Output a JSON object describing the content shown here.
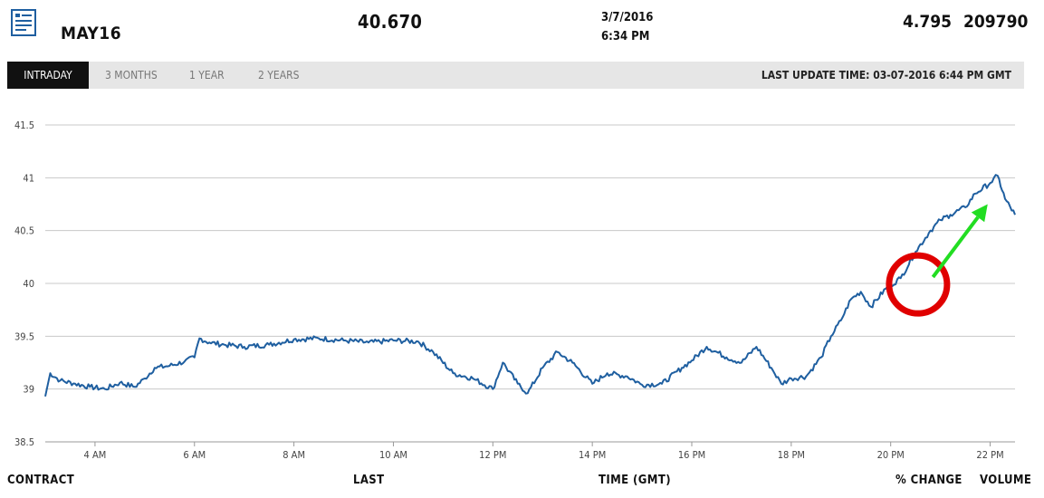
{
  "header": {
    "icon": "report-document-icon",
    "contract": "MAY16",
    "last": "40.670",
    "date": "3/7/2016",
    "time": "6:34 PM",
    "percent_change": "4.795",
    "volume": "209790"
  },
  "tabs": [
    {
      "label": "INTRADAY",
      "active": true
    },
    {
      "label": "3 MONTHS",
      "active": false
    },
    {
      "label": "1 YEAR",
      "active": false
    },
    {
      "label": "2 YEARS",
      "active": false
    }
  ],
  "last_update": "LAST UPDATE TIME: 03-07-2016 6:44 PM GMT",
  "footer": {
    "contract": "CONTRACT",
    "last": "LAST",
    "time": "TIME (GMT)",
    "percent_change": "% CHANGE",
    "volume": "VOLUME"
  },
  "chart_data": {
    "type": "line",
    "ylim": [
      38.5,
      41.5
    ],
    "yticks": [
      38.5,
      39,
      39.5,
      40,
      40.5,
      41,
      41.5
    ],
    "xlim": [
      3.0,
      22.5
    ],
    "xticks": [
      {
        "value": 4,
        "label": "4 AM"
      },
      {
        "value": 6,
        "label": "6 AM"
      },
      {
        "value": 8,
        "label": "8 AM"
      },
      {
        "value": 10,
        "label": "10 AM"
      },
      {
        "value": 12,
        "label": "12 PM"
      },
      {
        "value": 14,
        "label": "14 PM"
      },
      {
        "value": 16,
        "label": "16 PM"
      },
      {
        "value": 18,
        "label": "18 PM"
      },
      {
        "value": 20,
        "label": "20 PM"
      },
      {
        "value": 22,
        "label": "22 PM"
      }
    ],
    "grid": true,
    "line_color": "#1f5fa0",
    "series": [
      {
        "x": [
          3.0,
          3.1,
          3.3,
          3.6,
          3.9,
          4.2,
          4.5,
          4.8,
          5.0,
          5.2,
          5.5,
          5.8,
          6.0,
          6.1,
          6.3,
          6.6,
          7.0,
          7.5,
          8.0,
          8.5,
          9.0,
          9.5,
          10.0,
          10.5,
          10.8,
          11.2,
          11.6,
          12.0,
          12.2,
          12.5,
          12.7,
          13.0,
          13.3,
          13.6,
          14.0,
          14.3,
          14.7,
          15.0,
          15.4,
          15.8,
          16.0,
          16.3,
          16.7,
          17.0,
          17.3,
          17.6,
          17.8,
          18.0,
          18.3,
          18.6,
          18.8,
          19.0,
          19.2,
          19.4,
          19.6,
          19.9,
          20.2,
          20.5,
          20.8,
          21.0,
          21.2,
          21.5,
          21.7,
          22.0,
          22.15,
          22.3,
          22.5
        ],
        "y": [
          38.93,
          39.15,
          39.08,
          39.05,
          39.02,
          39.0,
          39.06,
          39.02,
          39.1,
          39.2,
          39.22,
          39.26,
          39.3,
          39.48,
          39.44,
          39.42,
          39.4,
          39.42,
          39.47,
          39.48,
          39.46,
          39.44,
          39.46,
          39.45,
          39.35,
          39.15,
          39.1,
          39.0,
          39.25,
          39.05,
          38.96,
          39.2,
          39.35,
          39.25,
          39.05,
          39.15,
          39.12,
          39.04,
          39.05,
          39.2,
          39.27,
          39.4,
          39.3,
          39.25,
          39.4,
          39.2,
          39.05,
          39.1,
          39.12,
          39.3,
          39.5,
          39.65,
          39.85,
          39.92,
          39.78,
          39.95,
          40.05,
          40.3,
          40.5,
          40.6,
          40.65,
          40.72,
          40.85,
          40.95,
          41.02,
          40.8,
          40.65
        ]
      }
    ]
  },
  "annotations": {
    "circle_color": "#e00000",
    "arrow_color": "#22dd22",
    "circle_center": {
      "x": 20.55,
      "y": 39.99
    },
    "arrow_from": {
      "x": 20.85,
      "y": 40.06
    },
    "arrow_to": {
      "x": 21.95,
      "y": 40.75
    }
  }
}
